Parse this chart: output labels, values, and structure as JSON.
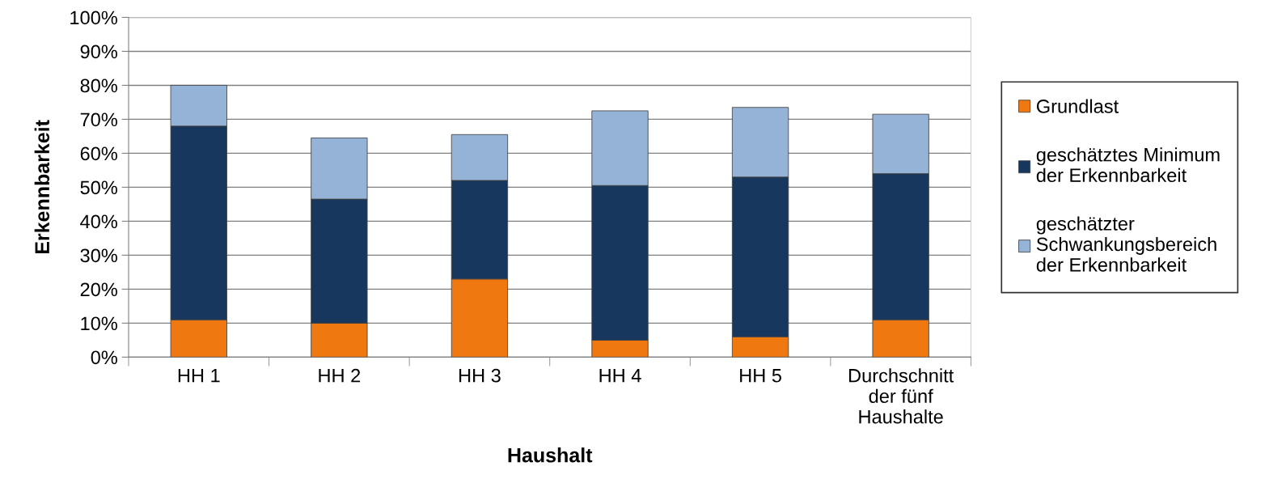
{
  "chart_data": {
    "type": "bar",
    "stacked": true,
    "xlabel": "Haushalt",
    "ylabel": "Erkennbarkeit",
    "categories": [
      "HH 1",
      "HH 2",
      "HH 3",
      "HH 4",
      "HH 5",
      "Durchschnitt\nder fünf\nHaushalte"
    ],
    "series": [
      {
        "name": "Grundlast",
        "color": "#f07810",
        "values": [
          11,
          10,
          23,
          5,
          6,
          11
        ]
      },
      {
        "name": "geschätztes Minimum\nder Erkennbarkeit",
        "color": "#17375e",
        "values": [
          57,
          36.5,
          29,
          45.5,
          47,
          43
        ]
      },
      {
        "name": "geschätzter\nSchwankungsbereich\nder Erkennbarkeit",
        "color": "#95b3d7",
        "values": [
          12,
          18,
          13.5,
          22,
          20.5,
          17.5
        ]
      }
    ],
    "ylim": [
      0,
      100
    ],
    "yticks": [
      {
        "value": 0,
        "label": "0%"
      },
      {
        "value": 10,
        "label": "10%"
      },
      {
        "value": 20,
        "label": "20%"
      },
      {
        "value": 30,
        "label": "30%"
      },
      {
        "value": 40,
        "label": "40%"
      },
      {
        "value": 50,
        "label": "50%"
      },
      {
        "value": 60,
        "label": "60%"
      },
      {
        "value": 70,
        "label": "70%"
      },
      {
        "value": 80,
        "label": "80%"
      },
      {
        "value": 90,
        "label": "90%"
      },
      {
        "value": 100,
        "label": "100%"
      }
    ],
    "grid": "y",
    "legend": "right"
  }
}
